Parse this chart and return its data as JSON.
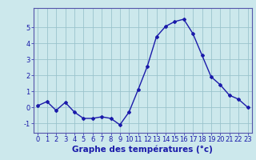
{
  "hours": [
    0,
    1,
    2,
    3,
    4,
    5,
    6,
    7,
    8,
    9,
    10,
    11,
    12,
    13,
    14,
    15,
    16,
    17,
    18,
    19,
    20,
    21,
    22,
    23
  ],
  "temps": [
    0.1,
    0.35,
    -0.2,
    0.3,
    -0.3,
    -0.7,
    -0.7,
    -0.6,
    -0.7,
    -1.1,
    -0.3,
    1.1,
    2.55,
    4.4,
    5.05,
    5.35,
    5.5,
    4.6,
    3.25,
    1.9,
    1.4,
    0.75,
    0.5,
    0.0
  ],
  "line_color": "#1a1aaa",
  "bg_color": "#cce8ec",
  "grid_color": "#9ac4cc",
  "xlabel": "Graphe des températures (°c)",
  "xlabel_color": "#1a1aaa",
  "xlim": [
    -0.5,
    23.5
  ],
  "ylim": [
    -1.6,
    6.2
  ],
  "yticks": [
    -1,
    0,
    1,
    2,
    3,
    4,
    5
  ],
  "xticks": [
    0,
    1,
    2,
    3,
    4,
    5,
    6,
    7,
    8,
    9,
    10,
    11,
    12,
    13,
    14,
    15,
    16,
    17,
    18,
    19,
    20,
    21,
    22,
    23
  ],
  "tick_color": "#1a1aaa",
  "spine_color": "#5555aa",
  "marker": "D",
  "marker_size": 2.0,
  "line_width": 1.0,
  "xlabel_fontsize": 7.5,
  "tick_fontsize": 6.0
}
